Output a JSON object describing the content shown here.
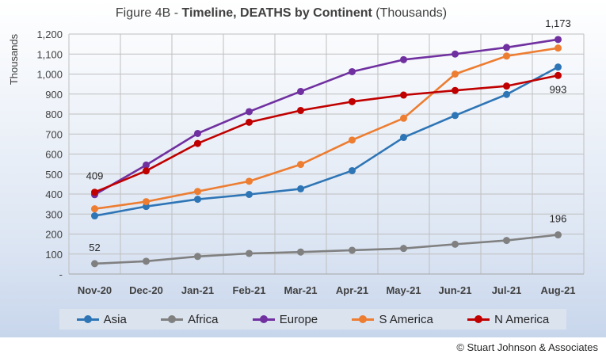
{
  "title": {
    "prefix": "Figure 4B - ",
    "bold": "Timeline, DEATHS by Continent",
    "suffix": " (Thousands)"
  },
  "copyright": "© Stuart Johnson & Associates",
  "chart_data": {
    "type": "line",
    "title": "Figure 4B - Timeline, DEATHS by Continent (Thousands)",
    "ylabel": "Thousands",
    "xlabel": "",
    "categories": [
      "Nov-20",
      "Dec-20",
      "Jan-21",
      "Feb-21",
      "Mar-21",
      "Apr-21",
      "May-21",
      "Jun-21",
      "Jul-21",
      "Aug-21"
    ],
    "ylim": [
      0,
      1200
    ],
    "yticks": [
      0,
      100,
      200,
      300,
      400,
      500,
      600,
      700,
      800,
      900,
      1000,
      1100,
      1200
    ],
    "ytick_labels": [
      "-",
      "100",
      "200",
      "300",
      "400",
      "500",
      "600",
      "700",
      "800",
      "900",
      "1,000",
      "1,100",
      "1,200"
    ],
    "grid": "horizontal",
    "legend_position": "bottom",
    "series": [
      {
        "name": "Asia",
        "color": "#2e75b6",
        "values": [
          291,
          338,
          374,
          398,
          426,
          517,
          683,
          793,
          898,
          1035
        ]
      },
      {
        "name": "Africa",
        "color": "#808080",
        "values": [
          52,
          64,
          88,
          103,
          110,
          119,
          128,
          149,
          168,
          196
        ]
      },
      {
        "name": "Europe",
        "color": "#7030a0",
        "values": [
          397,
          545,
          703,
          812,
          913,
          1012,
          1072,
          1100,
          1133,
          1173
        ]
      },
      {
        "name": "S America",
        "color": "#ed7d31",
        "values": [
          326,
          362,
          413,
          464,
          548,
          670,
          779,
          1000,
          1090,
          1130
        ]
      },
      {
        "name": "N America",
        "color": "#c00000",
        "values": [
          409,
          516,
          653,
          759,
          818,
          862,
          895,
          918,
          940,
          993
        ]
      }
    ],
    "annotations": [
      {
        "text": "409",
        "series": "N America",
        "index": 0,
        "pos": "above"
      },
      {
        "text": "52",
        "series": "Africa",
        "index": 0,
        "pos": "above"
      },
      {
        "text": "1,173",
        "series": "Europe",
        "index": 9,
        "pos": "above"
      },
      {
        "text": "993",
        "series": "N America",
        "index": 9,
        "pos": "below"
      },
      {
        "text": "196",
        "series": "Africa",
        "index": 9,
        "pos": "above"
      }
    ]
  }
}
